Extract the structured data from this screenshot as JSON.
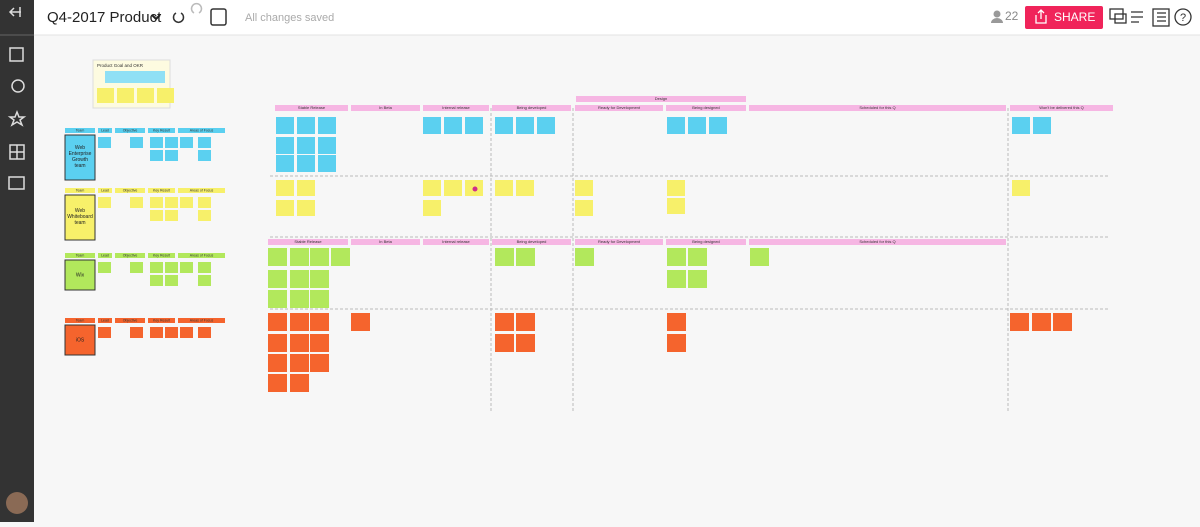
{
  "header": {
    "title": "Q4-2017 Product",
    "status": "All changes saved",
    "user_count": "22",
    "share": "SHARE"
  },
  "okr": {
    "title": "Product Goal and OKR"
  },
  "design_label": "Design",
  "columns": [
    "Stable Release",
    "In Beta",
    "Internal release",
    "Being developed",
    "Ready for Development",
    "Being designed",
    "Scheduled for this Q",
    "Won't be delivered this Q"
  ],
  "team_headers": [
    "Team",
    "Lead",
    "Objective",
    "Key Result",
    "Areas of Focus"
  ],
  "teams": [
    "Web Enterprise Growth team",
    "Web Whiteboard team",
    "Wix",
    "iOS"
  ]
}
